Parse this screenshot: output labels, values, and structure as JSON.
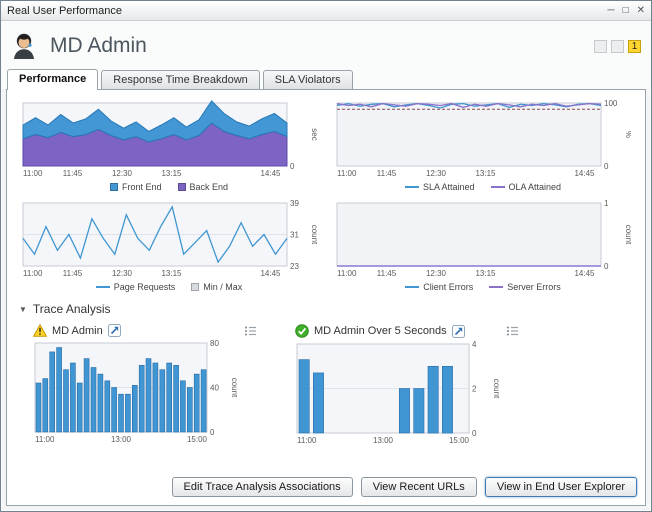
{
  "window": {
    "title": "Real User Performance"
  },
  "icons": {
    "minimize": "─",
    "maximize": "□",
    "close": "✕",
    "collapse": "▼"
  },
  "header": {
    "title": "MD Admin",
    "badge_count": "1"
  },
  "tabs": [
    {
      "label": "Performance",
      "active": true
    },
    {
      "label": "Response Time Breakdown",
      "active": false
    },
    {
      "label": "SLA Violators",
      "active": false
    }
  ],
  "chart_data": [
    {
      "id": "response-time",
      "type": "area",
      "ylabel": "sec",
      "ylim": [
        0,
        6
      ],
      "y_ticks": [
        0
      ],
      "x_labels": [
        "11:00",
        "11:45",
        "12:30",
        "13:15",
        "14:45"
      ],
      "x_pos": [
        0,
        0.1875,
        0.375,
        0.5625,
        0.9375
      ],
      "bg": "#f5f6f9",
      "series": [
        {
          "name": "Back End",
          "color": "#7d64c4",
          "stroke": "#5f48ad",
          "values": [
            2.6,
            3.0,
            2.7,
            3.2,
            2.8,
            3.0,
            3.5,
            2.9,
            2.5,
            2.8,
            2.3,
            2.6,
            3.0,
            2.5,
            2.9,
            4.1,
            3.3,
            2.9,
            2.6,
            3.0,
            3.3,
            2.8
          ]
        },
        {
          "name": "Front End",
          "color": "#4397d5",
          "stroke": "#2678b5",
          "values": [
            1.3,
            1.6,
            1.2,
            1.7,
            1.3,
            1.5,
            1.9,
            1.4,
            1.1,
            1.4,
            1.0,
            1.3,
            1.6,
            1.2,
            1.5,
            2.1,
            1.7,
            1.3,
            1.2,
            1.5,
            1.7,
            1.3
          ]
        }
      ],
      "legend": [
        {
          "label": "Front End",
          "color": "#4397d5",
          "shape": "square"
        },
        {
          "label": "Back End",
          "color": "#7d64c4",
          "shape": "square"
        }
      ]
    },
    {
      "id": "sla-ola",
      "type": "line",
      "ylabel": "%",
      "ylim": [
        0,
        100
      ],
      "y_ticks": [
        0,
        100
      ],
      "threshold": 90,
      "threshold_color": "#8a4a4a",
      "x_labels": [
        "11:00",
        "11:45",
        "12:30",
        "13:15",
        "14:45"
      ],
      "x_pos": [
        0,
        0.1875,
        0.375,
        0.5625,
        0.9375
      ],
      "bg": "#f2f3f7",
      "series": [
        {
          "name": "SLA Attained",
          "color": "#3f96d2",
          "values": [
            96,
            99,
            95,
            98,
            99,
            94,
            97,
            99,
            96,
            92,
            98,
            99,
            95,
            97,
            99,
            93,
            98,
            96,
            99,
            97,
            94,
            98,
            99,
            96
          ]
        },
        {
          "name": "OLA Attained",
          "color": "#8a71c9",
          "values": [
            99,
            96,
            98,
            94,
            99,
            97,
            95,
            99,
            98,
            96,
            99,
            93,
            98,
            95,
            99,
            97,
            94,
            98,
            96,
            99,
            95,
            97,
            99,
            98
          ]
        }
      ],
      "legend": [
        {
          "label": "SLA Attained",
          "color": "#3f96d2",
          "shape": "line"
        },
        {
          "label": "OLA Attained",
          "color": "#8a71c9",
          "shape": "line"
        }
      ]
    },
    {
      "id": "page-requests",
      "type": "line",
      "ylabel": "count",
      "ylim": [
        23,
        39
      ],
      "y_ticks": [
        23,
        31,
        39
      ],
      "x_labels": [
        "11:00",
        "11:45",
        "12:30",
        "13:15",
        "14:45"
      ],
      "x_pos": [
        0,
        0.1875,
        0.375,
        0.5625,
        0.9375
      ],
      "bg": "#f5f6f9",
      "series": [
        {
          "name": "Page Requests",
          "color": "#3f96d2",
          "values": [
            30,
            26,
            33,
            27,
            31,
            25,
            35,
            30,
            26,
            36,
            30,
            27,
            33,
            38,
            26,
            29,
            32,
            24,
            28,
            34,
            28,
            31,
            26,
            30
          ]
        }
      ],
      "legend": [
        {
          "label": "Page Requests",
          "color": "#3f96d2",
          "shape": "line"
        },
        {
          "label": "Min / Max",
          "color": "#d7dade",
          "shape": "square"
        }
      ]
    },
    {
      "id": "errors",
      "type": "line",
      "ylabel": "count",
      "ylim": [
        0,
        1
      ],
      "y_ticks": [
        0,
        1
      ],
      "x_labels": [
        "11:00",
        "11:45",
        "12:30",
        "13:15",
        "14:45"
      ],
      "x_pos": [
        0,
        0.1875,
        0.375,
        0.5625,
        0.9375
      ],
      "bg": "#f2f3f7",
      "series": [
        {
          "name": "Client Errors",
          "color": "#3f96d2",
          "values": [
            0,
            0,
            0,
            0,
            0,
            0,
            0,
            0,
            0,
            0,
            0,
            0
          ]
        },
        {
          "name": "Server Errors",
          "color": "#8a71c9",
          "values": [
            0,
            0,
            0,
            0,
            0,
            0,
            0,
            0,
            0,
            0,
            0,
            0
          ]
        }
      ],
      "legend": [
        {
          "label": "Client Errors",
          "color": "#3f96d2",
          "shape": "line"
        },
        {
          "label": "Server Errors",
          "color": "#8a71c9",
          "shape": "line"
        }
      ]
    },
    {
      "id": "trace-md-admin",
      "type": "bar",
      "ylabel": "count",
      "ylim": [
        0,
        80
      ],
      "y_ticks": [
        0,
        40,
        80
      ],
      "x_labels": [
        "11:00",
        "13:00",
        "15:00"
      ],
      "x_pos": [
        0,
        0.5,
        1
      ],
      "bg": "#f5f6f9",
      "series": [
        {
          "name": "Traces",
          "color": "#3f96d2",
          "stroke": "#2a6ca8",
          "values": [
            44,
            48,
            72,
            76,
            56,
            62,
            44,
            66,
            58,
            52,
            46,
            40,
            34,
            34,
            42,
            60,
            66,
            62,
            56,
            62,
            60,
            46,
            40,
            52,
            56
          ]
        }
      ]
    },
    {
      "id": "trace-md-admin-over-5s",
      "type": "bar",
      "ylabel": "count",
      "ylim": [
        0,
        4
      ],
      "y_ticks": [
        0,
        2,
        4
      ],
      "x_labels": [
        "11:00",
        "13:00",
        "15:00"
      ],
      "x_pos": [
        0,
        0.5,
        1
      ],
      "bg": "#f5f6f9",
      "series": [
        {
          "name": "Traces",
          "color": "#3f96d2",
          "stroke": "#2a6ca8",
          "values": [
            3.3,
            2.7,
            0,
            0,
            0,
            0,
            0,
            2,
            2,
            3,
            3,
            0
          ]
        }
      ]
    }
  ],
  "trace_analysis": {
    "label": "Trace Analysis",
    "panels": [
      {
        "title": "MD Admin",
        "status": "warning"
      },
      {
        "title": "MD Admin Over 5 Seconds",
        "status": "ok"
      }
    ]
  },
  "footer_buttons": [
    "Edit Trace Analysis Associations",
    "View Recent URLs",
    "View in End User Explorer"
  ]
}
